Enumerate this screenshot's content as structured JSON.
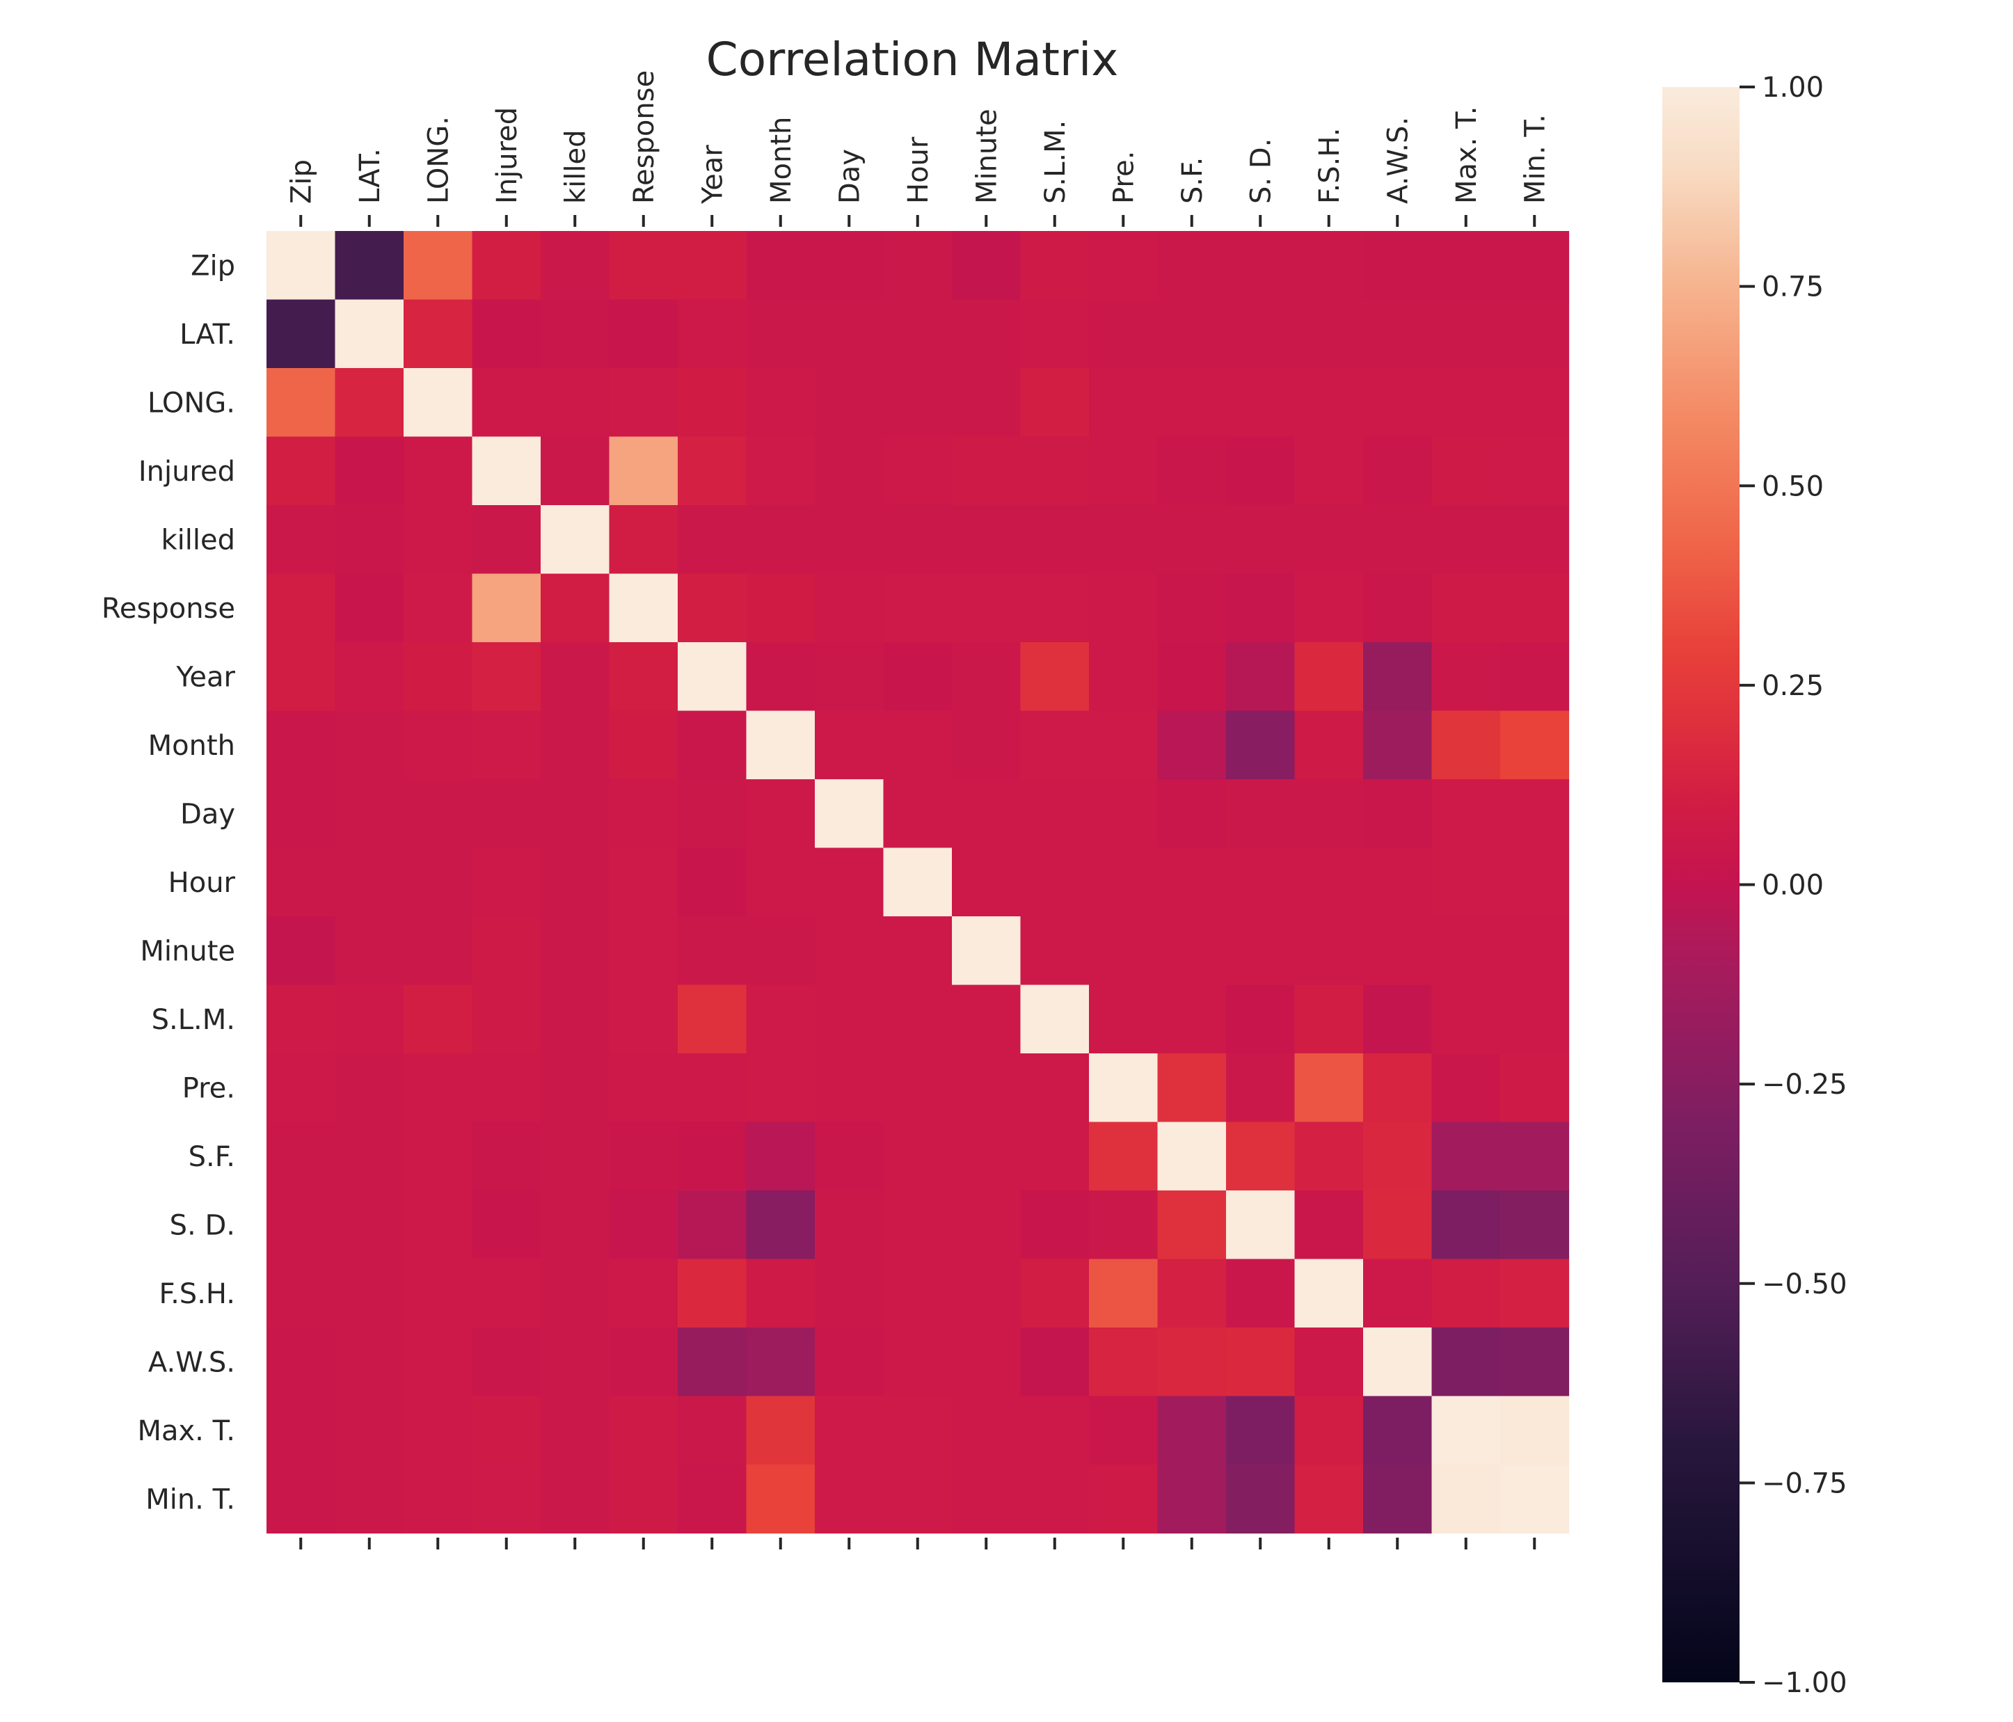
{
  "chart_data": {
    "type": "heatmap",
    "title": "Correlation Matrix",
    "xlabel": "",
    "ylabel": "",
    "labels": [
      "Zip",
      "LAT.",
      "LONG.",
      "Injured",
      "killed",
      "Response",
      "Year",
      "Month",
      "Day",
      "Hour",
      "Minute",
      "S.L.M.",
      "Pre.",
      "S.F.",
      "S. D.",
      "F.S.H.",
      "A.W.S.",
      "Max. T.",
      "Min. T."
    ],
    "values": [
      [
        1.0,
        -0.57,
        0.43,
        0.11,
        0.05,
        0.1,
        0.1,
        0.04,
        0.04,
        0.05,
        0.01,
        0.08,
        0.06,
        0.05,
        0.05,
        0.05,
        0.04,
        0.04,
        0.04
      ],
      [
        -0.57,
        1.0,
        0.14,
        0.03,
        0.04,
        0.03,
        0.06,
        0.05,
        0.05,
        0.05,
        0.05,
        0.06,
        0.05,
        0.05,
        0.05,
        0.05,
        0.05,
        0.05,
        0.05
      ],
      [
        0.43,
        0.14,
        1.0,
        0.06,
        0.06,
        0.07,
        0.09,
        0.06,
        0.05,
        0.05,
        0.05,
        0.11,
        0.06,
        0.06,
        0.06,
        0.06,
        0.06,
        0.06,
        0.06
      ],
      [
        0.11,
        0.03,
        0.06,
        1.0,
        0.05,
        0.69,
        0.12,
        0.07,
        0.05,
        0.06,
        0.08,
        0.08,
        0.06,
        0.04,
        0.03,
        0.06,
        0.04,
        0.08,
        0.07
      ],
      [
        0.05,
        0.04,
        0.06,
        0.05,
        1.0,
        0.1,
        0.05,
        0.05,
        0.05,
        0.05,
        0.05,
        0.05,
        0.05,
        0.05,
        0.05,
        0.05,
        0.05,
        0.05,
        0.05
      ],
      [
        0.1,
        0.03,
        0.07,
        0.69,
        0.1,
        1.0,
        0.11,
        0.09,
        0.06,
        0.07,
        0.07,
        0.07,
        0.06,
        0.04,
        0.02,
        0.06,
        0.04,
        0.08,
        0.08
      ],
      [
        0.1,
        0.06,
        0.09,
        0.12,
        0.05,
        0.11,
        1.0,
        0.04,
        0.05,
        0.03,
        0.05,
        0.21,
        0.06,
        0.03,
        -0.05,
        0.17,
        -0.18,
        0.05,
        0.04
      ],
      [
        0.04,
        0.05,
        0.06,
        0.07,
        0.05,
        0.09,
        0.04,
        1.0,
        0.06,
        0.06,
        0.05,
        0.07,
        0.07,
        -0.04,
        -0.25,
        0.08,
        -0.15,
        0.23,
        0.3
      ],
      [
        0.04,
        0.05,
        0.05,
        0.05,
        0.05,
        0.06,
        0.05,
        0.06,
        1.0,
        0.06,
        0.06,
        0.06,
        0.06,
        0.04,
        0.05,
        0.05,
        0.04,
        0.07,
        0.07
      ],
      [
        0.05,
        0.05,
        0.05,
        0.06,
        0.05,
        0.07,
        0.03,
        0.06,
        0.06,
        1.0,
        0.06,
        0.06,
        0.06,
        0.06,
        0.06,
        0.06,
        0.06,
        0.07,
        0.07
      ],
      [
        0.01,
        0.05,
        0.05,
        0.08,
        0.05,
        0.07,
        0.05,
        0.05,
        0.06,
        0.06,
        1.0,
        0.06,
        0.06,
        0.06,
        0.06,
        0.06,
        0.06,
        0.06,
        0.06
      ],
      [
        0.08,
        0.06,
        0.11,
        0.08,
        0.05,
        0.07,
        0.21,
        0.07,
        0.06,
        0.06,
        0.06,
        1.0,
        0.06,
        0.06,
        0.03,
        0.1,
        0.01,
        0.06,
        0.06
      ],
      [
        0.06,
        0.05,
        0.06,
        0.06,
        0.05,
        0.06,
        0.06,
        0.07,
        0.06,
        0.06,
        0.06,
        0.06,
        1.0,
        0.21,
        0.05,
        0.37,
        0.14,
        0.04,
        0.08
      ],
      [
        0.05,
        0.05,
        0.06,
        0.04,
        0.05,
        0.04,
        0.03,
        -0.04,
        0.04,
        0.06,
        0.06,
        0.06,
        0.21,
        1.0,
        0.21,
        0.12,
        0.16,
        -0.13,
        -0.13
      ],
      [
        0.05,
        0.05,
        0.06,
        0.03,
        0.05,
        0.02,
        -0.05,
        -0.25,
        0.05,
        0.06,
        0.06,
        0.03,
        0.05,
        0.21,
        1.0,
        0.04,
        0.17,
        -0.3,
        -0.27
      ],
      [
        0.05,
        0.05,
        0.06,
        0.06,
        0.05,
        0.06,
        0.17,
        0.08,
        0.05,
        0.06,
        0.06,
        0.1,
        0.37,
        0.12,
        0.04,
        1.0,
        0.06,
        0.1,
        0.12
      ],
      [
        0.04,
        0.05,
        0.06,
        0.04,
        0.05,
        0.04,
        -0.18,
        -0.15,
        0.04,
        0.06,
        0.06,
        0.01,
        0.14,
        0.16,
        0.17,
        0.06,
        1.0,
        -0.3,
        -0.28
      ],
      [
        0.04,
        0.05,
        0.06,
        0.08,
        0.05,
        0.08,
        0.05,
        0.23,
        0.07,
        0.07,
        0.06,
        0.06,
        0.04,
        -0.13,
        -0.3,
        0.1,
        -0.3,
        1.0,
        0.98
      ],
      [
        0.04,
        0.05,
        0.06,
        0.07,
        0.05,
        0.08,
        0.04,
        0.3,
        0.07,
        0.07,
        0.06,
        0.06,
        0.08,
        -0.13,
        -0.27,
        0.12,
        -0.28,
        0.98,
        1.0
      ]
    ],
    "colorbar": {
      "vmin": -1.0,
      "vmax": 1.0,
      "ticks": [
        1.0,
        0.75,
        0.5,
        0.25,
        0.0,
        -0.25,
        -0.5,
        -0.75,
        -1.0
      ],
      "tick_labels": [
        "1.00",
        "0.75",
        "0.50",
        "0.25",
        "0.00",
        "−0.25",
        "−0.50",
        "−0.75",
        "−1.00"
      ]
    },
    "colormap": "rocket",
    "grid": false,
    "x_tick_position": "top"
  }
}
